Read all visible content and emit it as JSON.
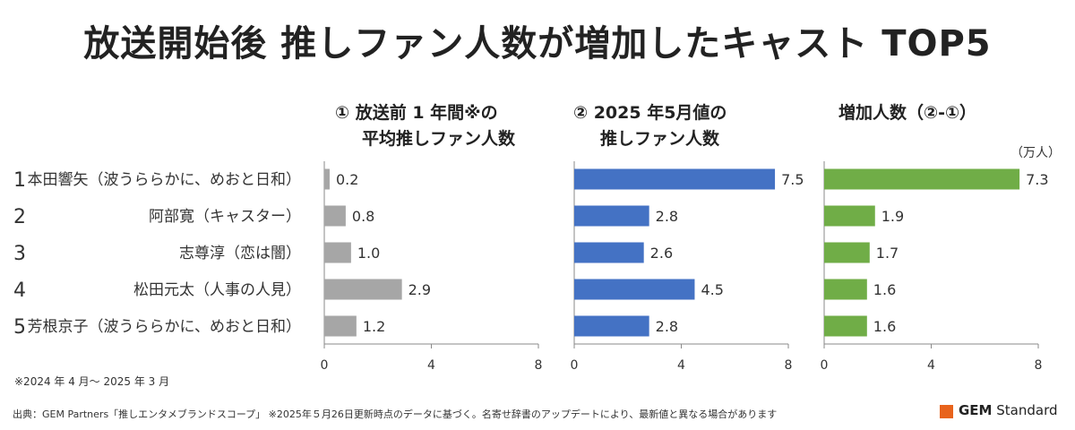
{
  "title": "放送開始後 推しファン人数が増加したキャスト TOP5",
  "panels_header": {
    "p1": [
      "① 放送前 1 年間※の",
      "平均推しファン人数"
    ],
    "p2": [
      "② 2025 年5月値の",
      "推しファン人数"
    ],
    "p3": [
      "増加人数（②-①）"
    ]
  },
  "unit": "（万人）",
  "footnote": "※2024 年 4 月～ 2025 年 3 月",
  "source": "出典：GEM Partners「推しエンタメブランドスコープ」 ※2025年５月26日更新時点のデータに基づく。名寄せ辞書のアップデートにより、最新値と異なる場合があります",
  "logo": {
    "gem": "GEM",
    "standard": "Standard"
  },
  "colors": {
    "before": "#a6a6a6",
    "may2025": "#4472c4",
    "increase": "#70ad47"
  },
  "chart_data": {
    "type": "bar",
    "orientation": "horizontal",
    "ranks": [
      "1",
      "2",
      "3",
      "4",
      "5"
    ],
    "categories": [
      "本田響矢（波うららかに、めおと日和）",
      "阿部寛（キャスター）",
      "志尊淳（恋は闇）",
      "松田元太（人事の人見）",
      "芳根京子（波うららかに、めおと日和）"
    ],
    "series": [
      {
        "values": [
          0.2,
          0.8,
          1.0,
          2.9,
          1.2
        ],
        "labels": [
          "0.2",
          "0.8",
          "1.0",
          "2.9",
          "1.2"
        ],
        "xlim": [
          0,
          8
        ],
        "ticks": [
          "0",
          "4",
          "8"
        ]
      },
      {
        "values": [
          7.5,
          2.8,
          2.6,
          4.5,
          2.8
        ],
        "labels": [
          "7.5",
          "2.8",
          "2.6",
          "4.5",
          "2.8"
        ],
        "xlim": [
          0,
          8
        ],
        "ticks": [
          "0",
          "4",
          "8"
        ]
      },
      {
        "values": [
          7.3,
          1.9,
          1.7,
          1.6,
          1.6
        ],
        "labels": [
          "7.3",
          "1.9",
          "1.7",
          "1.6",
          "1.6"
        ],
        "xlim": [
          0,
          8
        ],
        "ticks": [
          "0",
          "4",
          "8"
        ]
      }
    ],
    "grid": false,
    "legend": "none"
  }
}
